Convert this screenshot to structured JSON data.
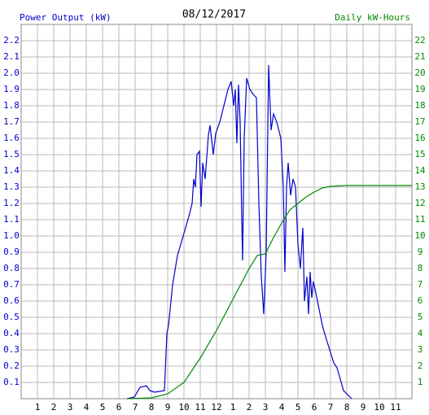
{
  "chart_data": {
    "type": "line",
    "title": "08/12/2017",
    "ylabel": "Power Output (kW)",
    "y2label": "Daily kW-Hours",
    "xlim": [
      0,
      24
    ],
    "xticks": [
      1,
      2,
      3,
      4,
      5,
      6,
      7,
      8,
      9,
      10,
      11,
      12,
      {
        "value": 13,
        "label": "1"
      },
      {
        "value": 14,
        "label": "2"
      },
      {
        "value": 15,
        "label": "3"
      },
      {
        "value": 16,
        "label": "4"
      },
      {
        "value": 17,
        "label": "5"
      },
      {
        "value": 18,
        "label": "6"
      },
      {
        "value": 19,
        "label": "7"
      },
      {
        "value": 20,
        "label": "8"
      },
      {
        "value": 21,
        "label": "9"
      },
      {
        "value": 22,
        "label": "10"
      },
      {
        "value": 23,
        "label": "11"
      }
    ],
    "ylim": [
      0,
      2.3
    ],
    "yticks": [
      0.1,
      0.2,
      0.3,
      0.4,
      0.5,
      0.6,
      0.7,
      0.8,
      0.9,
      {
        "value": 1,
        "label": "1.0"
      },
      1.1,
      1.2,
      1.3,
      1.4,
      1.5,
      1.6,
      1.7,
      1.8,
      1.9,
      {
        "value": 2,
        "label": "2.0"
      },
      2.1,
      2.2
    ],
    "y2lim": [
      0,
      23
    ],
    "y2ticks": [
      1,
      2,
      3,
      4,
      5,
      6,
      7,
      8,
      9,
      10,
      11,
      12,
      13,
      14,
      15,
      16,
      17,
      18,
      19,
      20,
      21,
      22
    ],
    "grid": true,
    "series": [
      {
        "name": "Power Output (kW)",
        "color": "#0000cc",
        "x": [
          6.5,
          6.95,
          7.3,
          7.7,
          7.9,
          8.2,
          8.8,
          8.95,
          9.05,
          9.3,
          9.6,
          9.95,
          10.3,
          10.5,
          10.6,
          10.7,
          10.8,
          10.95,
          11.05,
          11.15,
          11.3,
          11.5,
          11.6,
          11.8,
          11.95,
          12.2,
          12.45,
          12.7,
          12.9,
          13.05,
          13.15,
          13.25,
          13.35,
          13.45,
          13.55,
          13.6,
          13.7,
          13.85,
          14.05,
          14.25,
          14.45,
          14.6,
          14.75,
          14.9,
          15.05,
          15.2,
          15.35,
          15.5,
          15.7,
          15.95,
          16.1,
          16.2,
          16.3,
          16.4,
          16.55,
          16.7,
          16.85,
          17.0,
          17.15,
          17.3,
          17.4,
          17.55,
          17.65,
          17.75,
          17.85,
          17.95,
          18.1,
          18.3,
          18.5,
          18.7,
          18.95,
          19.2,
          19.4,
          19.6,
          19.8,
          20.1,
          20.3
        ],
        "values": [
          0,
          0.01,
          0.07,
          0.08,
          0.05,
          0.04,
          0.05,
          0.4,
          0.45,
          0.7,
          0.88,
          1.0,
          1.12,
          1.2,
          1.35,
          1.3,
          1.5,
          1.52,
          1.18,
          1.45,
          1.35,
          1.62,
          1.68,
          1.5,
          1.63,
          1.7,
          1.8,
          1.9,
          1.95,
          1.8,
          1.9,
          1.57,
          1.93,
          1.7,
          1.1,
          0.85,
          1.6,
          1.97,
          1.9,
          1.87,
          1.85,
          1.2,
          0.75,
          0.52,
          0.9,
          2.05,
          1.65,
          1.75,
          1.7,
          1.6,
          1.3,
          0.78,
          1.3,
          1.45,
          1.25,
          1.35,
          1.3,
          0.95,
          0.8,
          1.05,
          0.6,
          0.75,
          0.52,
          0.78,
          0.62,
          0.72,
          0.65,
          0.55,
          0.45,
          0.38,
          0.3,
          0.22,
          0.19,
          0.12,
          0.05,
          0.02,
          0
        ]
      },
      {
        "name": "Daily kW-Hours",
        "color": "#008800",
        "axis": "y2",
        "x": [
          6.5,
          8,
          9,
          10,
          11,
          12,
          13,
          14,
          14.5,
          15,
          15.5,
          16,
          16.5,
          17,
          17.5,
          18,
          18.5,
          19,
          20,
          24
        ],
        "values": [
          0,
          0.05,
          0.3,
          1.0,
          2.5,
          4.2,
          6.1,
          8.0,
          8.8,
          8.9,
          9.9,
          10.8,
          11.6,
          12.0,
          12.4,
          12.7,
          12.95,
          13.05,
          13.1,
          13.1
        ]
      }
    ]
  }
}
